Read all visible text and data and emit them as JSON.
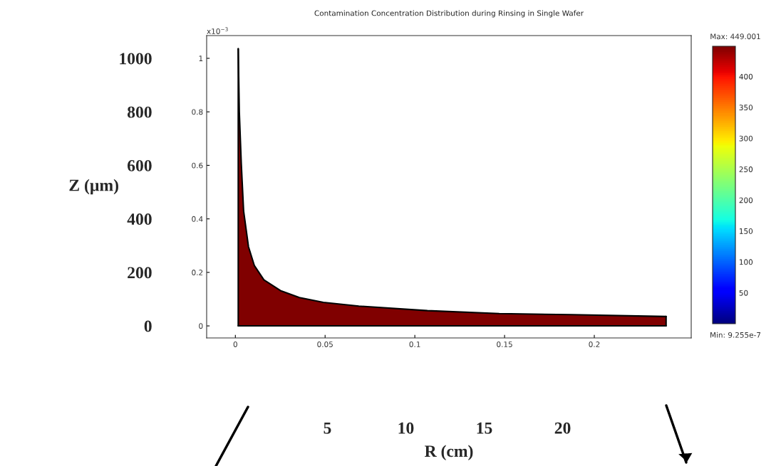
{
  "chart_data": {
    "type": "area",
    "title": "Contamination Concentration Distribution during Rinsing in Single Wafer",
    "ylabel": "x10$^{−3}$",
    "xlabel": null,
    "y2label": "Z (µm)",
    "x2label": "R (cm)",
    "x": [
      0.0016,
      0.0022,
      0.0033,
      0.0046,
      0.0073,
      0.0106,
      0.0159,
      0.0251,
      0.0357,
      0.049,
      0.0688,
      0.107,
      0.147,
      0.187,
      0.24
    ],
    "series": [
      {
        "color": "#800000",
        "values": [
          1.036,
          0.8,
          0.606,
          0.429,
          0.296,
          0.225,
          0.172,
          0.132,
          0.106,
          0.088,
          0.074,
          0.057,
          0.046,
          0.042,
          0.035
        ]
      }
    ],
    "xlim": [
      -0.016,
      0.254
    ],
    "xticks": [
      0,
      0.05,
      0.1,
      0.15,
      0.2
    ],
    "ylim": [
      -0.045,
      1.085
    ],
    "yticks": [
      0,
      0.2,
      0.4,
      0.6,
      0.8,
      1
    ],
    "y2lim": [
      -45,
      1085
    ],
    "y2ticks": [
      0,
      200,
      400,
      600,
      800,
      1000
    ],
    "x2lim": [
      -2.7,
      28.2
    ],
    "x2ticks": [
      5,
      10,
      15,
      20
    ],
    "clim": [
      9.255e-07,
      449.001
    ],
    "cticks": [
      50,
      100,
      150,
      200,
      250,
      300,
      350,
      400
    ],
    "annotations": [
      "Max: 449.001",
      "Min: 9.255e-7"
    ]
  }
}
